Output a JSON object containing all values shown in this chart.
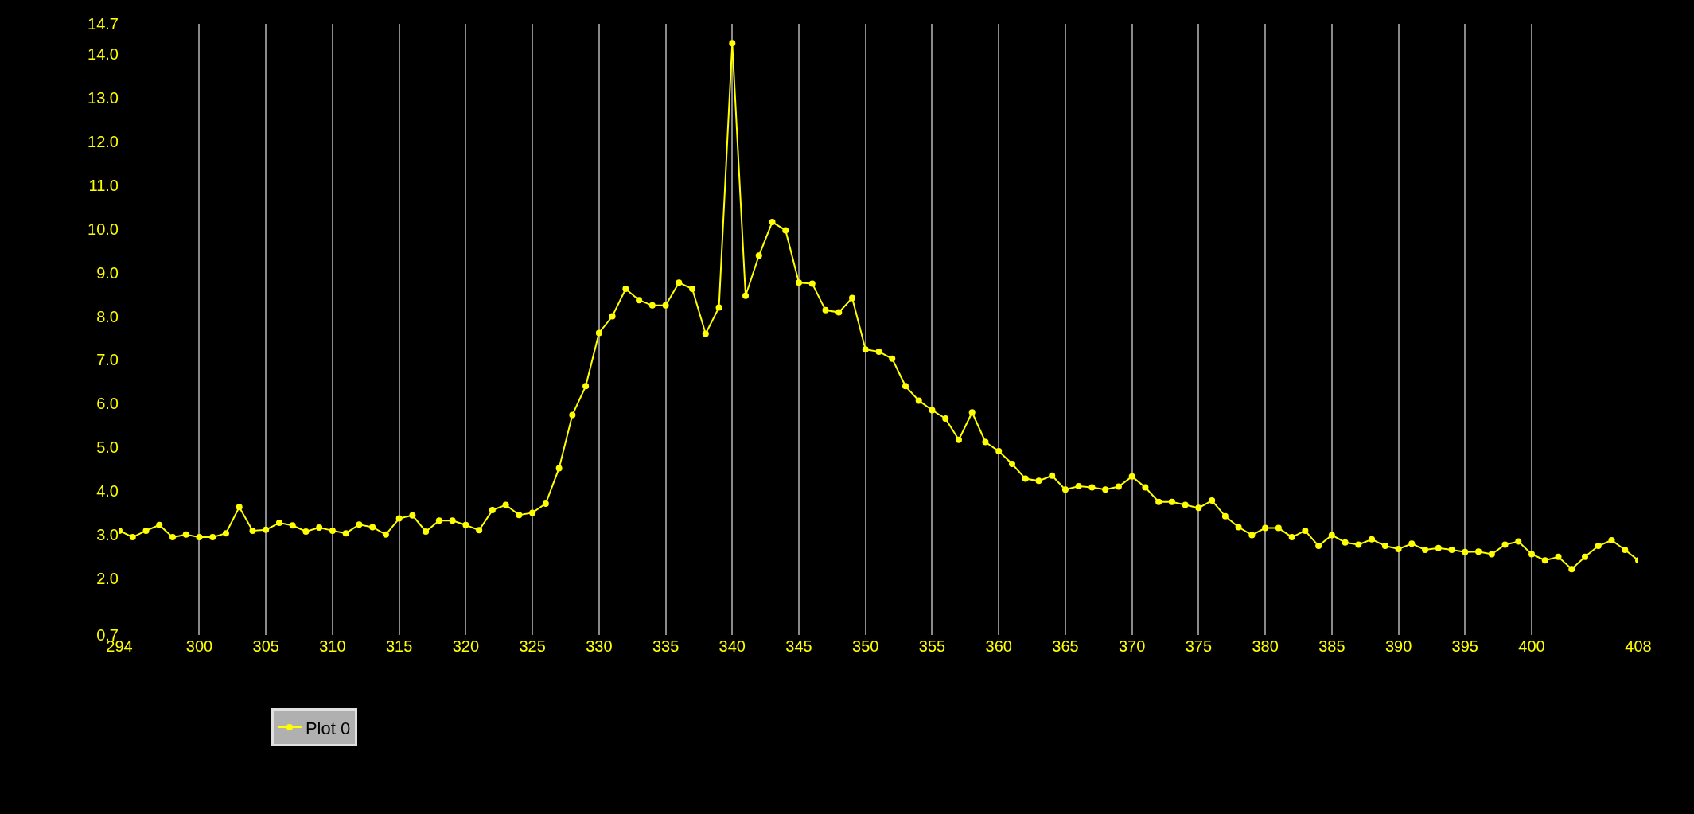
{
  "chart_data": {
    "type": "line",
    "x": [
      294,
      295,
      296,
      297,
      298,
      299,
      300,
      301,
      302,
      303,
      304,
      305,
      306,
      307,
      308,
      309,
      310,
      311,
      312,
      313,
      314,
      315,
      316,
      317,
      318,
      319,
      320,
      321,
      322,
      323,
      324,
      325,
      326,
      327,
      328,
      329,
      330,
      331,
      332,
      333,
      334,
      335,
      336,
      337,
      338,
      339,
      340,
      341,
      342,
      343,
      344,
      345,
      346,
      347,
      348,
      349,
      350,
      351,
      352,
      353,
      354,
      355,
      356,
      357,
      358,
      359,
      360,
      361,
      362,
      363,
      364,
      365,
      366,
      367,
      368,
      369,
      370,
      371,
      372,
      373,
      374,
      375,
      376,
      377,
      378,
      379,
      380,
      381,
      382,
      383,
      384,
      385,
      386,
      387,
      388,
      389,
      390,
      391,
      392,
      393,
      394,
      395,
      396,
      397,
      398,
      399,
      400,
      401,
      402,
      403,
      404,
      405,
      406,
      407,
      408
    ],
    "series": [
      {
        "name": "Plot 0",
        "color": "#ffff00",
        "values": [
          3.09,
          2.94,
          3.09,
          3.22,
          2.94,
          3.0,
          2.94,
          2.94,
          3.03,
          3.63,
          3.09,
          3.11,
          3.27,
          3.21,
          3.07,
          3.16,
          3.09,
          3.03,
          3.23,
          3.17,
          3.0,
          3.37,
          3.44,
          3.07,
          3.32,
          3.32,
          3.22,
          3.1,
          3.56,
          3.68,
          3.45,
          3.5,
          3.71,
          4.52,
          5.74,
          6.4,
          7.62,
          8.0,
          8.63,
          8.37,
          8.25,
          8.25,
          8.77,
          8.63,
          7.6,
          8.2,
          14.26,
          8.47,
          9.39,
          10.16,
          9.97,
          8.77,
          8.75,
          8.14,
          8.09,
          8.42,
          7.24,
          7.19,
          7.03,
          6.4,
          6.07,
          5.85,
          5.66,
          5.17,
          5.8,
          5.12,
          4.91,
          4.62,
          4.28,
          4.23,
          4.35,
          4.03,
          4.11,
          4.08,
          4.03,
          4.1,
          4.33,
          4.08,
          3.75,
          3.75,
          3.68,
          3.61,
          3.78,
          3.42,
          3.17,
          2.99,
          3.15,
          3.15,
          2.94,
          3.09,
          2.74,
          2.99,
          2.82,
          2.77,
          2.89,
          2.74,
          2.67,
          2.79,
          2.65,
          2.69,
          2.65,
          2.6,
          2.61,
          2.55,
          2.77,
          2.84,
          2.55,
          2.41,
          2.49,
          2.21,
          2.49,
          2.74,
          2.87,
          2.65,
          2.41
        ]
      }
    ],
    "xlim": [
      294,
      408
    ],
    "xticks": [
      294,
      300,
      305,
      310,
      315,
      320,
      325,
      330,
      335,
      340,
      345,
      350,
      355,
      360,
      365,
      370,
      375,
      380,
      385,
      390,
      395,
      400,
      408
    ],
    "ylim": [
      0.7,
      14.7
    ],
    "yticks": [
      {
        "value": 0.7,
        "label": "0.7"
      },
      {
        "value": 2,
        "label": "2.0"
      },
      {
        "value": 3,
        "label": "3.0"
      },
      {
        "value": 4,
        "label": "4.0"
      },
      {
        "value": 5,
        "label": "5.0"
      },
      {
        "value": 6,
        "label": "6.0"
      },
      {
        "value": 7,
        "label": "7.0"
      },
      {
        "value": 8,
        "label": "8.0"
      },
      {
        "value": 9,
        "label": "9.0"
      },
      {
        "value": 10,
        "label": "10.0"
      },
      {
        "value": 11,
        "label": "11.0"
      },
      {
        "value": 12,
        "label": "12.0"
      },
      {
        "value": 13,
        "label": "13.0"
      },
      {
        "value": 14,
        "label": "14.0"
      },
      {
        "value": 14.7,
        "label": "14.7"
      }
    ],
    "grid": "x",
    "legend": "bottom left",
    "marker": "circle",
    "line_style": "solid"
  }
}
